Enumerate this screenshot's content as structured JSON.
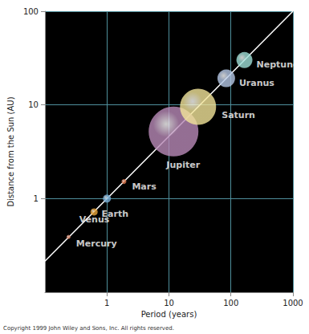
{
  "chart_data": {
    "type": "scatter",
    "x_label": "Period (years)",
    "y_label": "Distance from the Sun (AU)",
    "labels": [
      "Mercury",
      "Venus",
      "Earth",
      "Mars",
      "Jupiter",
      "Saturn",
      "Uranus",
      "Neptune"
    ],
    "x": [
      0.24,
      0.62,
      1,
      1.88,
      11.86,
      29.46,
      84,
      165
    ],
    "values": [
      0.39,
      0.72,
      1,
      1.52,
      5.2,
      9.54,
      19.2,
      30.1
    ],
    "sizes": [
      5,
      9,
      10,
      6,
      62,
      45,
      22,
      20
    ],
    "colors": [
      "#d9866a",
      "#e8a53a",
      "#7ab0d8",
      "#e07a50",
      "#b98ab8",
      "#f3e59a",
      "#b5c8e6",
      "#9fe0d8"
    ],
    "marker": "circle",
    "fit": {
      "type": "line",
      "color": "#ffffff",
      "x": [
        0.1,
        1000
      ],
      "values": [
        0.215,
        100
      ]
    },
    "xlim": [
      0.1,
      1000
    ],
    "ylim": [
      0.1,
      100
    ],
    "xticks": [
      1,
      10,
      100,
      1000
    ],
    "yticks": [
      1,
      10,
      100
    ],
    "log": true,
    "grid": true,
    "note": "Copyright 1999 John Wiley and Sons, Inc. All rights reserved."
  }
}
